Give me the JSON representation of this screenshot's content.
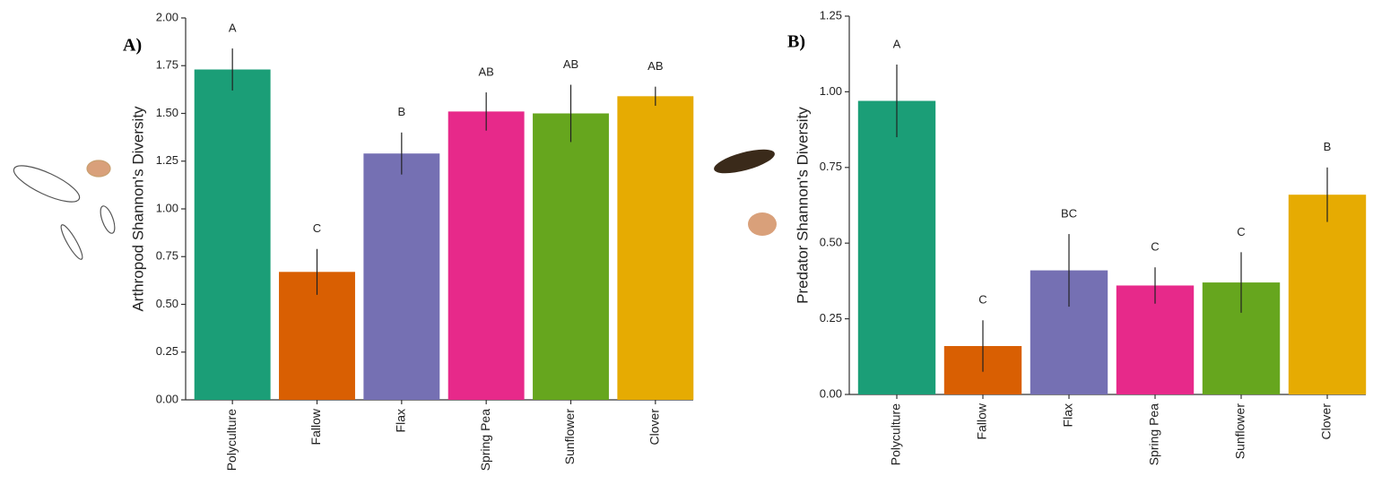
{
  "chart_data": [
    {
      "type": "bar",
      "panel_label": "A)",
      "y_label": "Arthropod Shannon's Diversity",
      "categories": [
        "Polyculture",
        "Fallow",
        "Flax",
        "Spring Pea",
        "Sunflower",
        "Clover"
      ],
      "values": [
        1.73,
        0.67,
        1.29,
        1.51,
        1.5,
        1.59
      ],
      "errors": [
        0.11,
        0.12,
        0.11,
        0.1,
        0.15,
        0.05
      ],
      "letters": [
        "A",
        "C",
        "B",
        "AB",
        "AB",
        "AB"
      ],
      "colors": [
        "#1b9e77",
        "#d95f02",
        "#7570b3",
        "#e7298a",
        "#66a61e",
        "#e6ab02"
      ],
      "ylim": [
        0,
        2
      ],
      "yticks": [
        {
          "value": 0,
          "label": "0.00"
        },
        {
          "value": 0.25,
          "label": "0.25"
        },
        {
          "value": 0.5,
          "label": "0.50"
        },
        {
          "value": 0.75,
          "label": "0.75"
        },
        {
          "value": 1,
          "label": "1.00"
        },
        {
          "value": 1.25,
          "label": "1.25"
        },
        {
          "value": 1.5,
          "label": "1.50"
        },
        {
          "value": 1.75,
          "label": "1.75"
        },
        {
          "value": 2,
          "label": "2.00"
        }
      ]
    },
    {
      "type": "bar",
      "panel_label": "B)",
      "y_label": "Predator Shannon's Diversity",
      "categories": [
        "Polyculture",
        "Fallow",
        "Flax",
        "Spring Pea",
        "Sunflower",
        "Clover"
      ],
      "values": [
        0.97,
        0.16,
        0.41,
        0.36,
        0.37,
        0.66
      ],
      "errors": [
        0.12,
        0.085,
        0.12,
        0.06,
        0.1,
        0.09
      ],
      "letters": [
        "A",
        "C",
        "BC",
        "C",
        "C",
        "B"
      ],
      "colors": [
        "#1b9e77",
        "#d95f02",
        "#7570b3",
        "#e7298a",
        "#66a61e",
        "#e6ab02"
      ],
      "ylim": [
        0,
        1.25
      ],
      "yticks": [
        {
          "value": 0,
          "label": "0.00"
        },
        {
          "value": 0.25,
          "label": "0.25"
        },
        {
          "value": 0.5,
          "label": "0.50"
        },
        {
          "value": 0.75,
          "label": "0.75"
        },
        {
          "value": 1,
          "label": "1.00"
        },
        {
          "value": 1.25,
          "label": "1.25"
        }
      ]
    }
  ]
}
